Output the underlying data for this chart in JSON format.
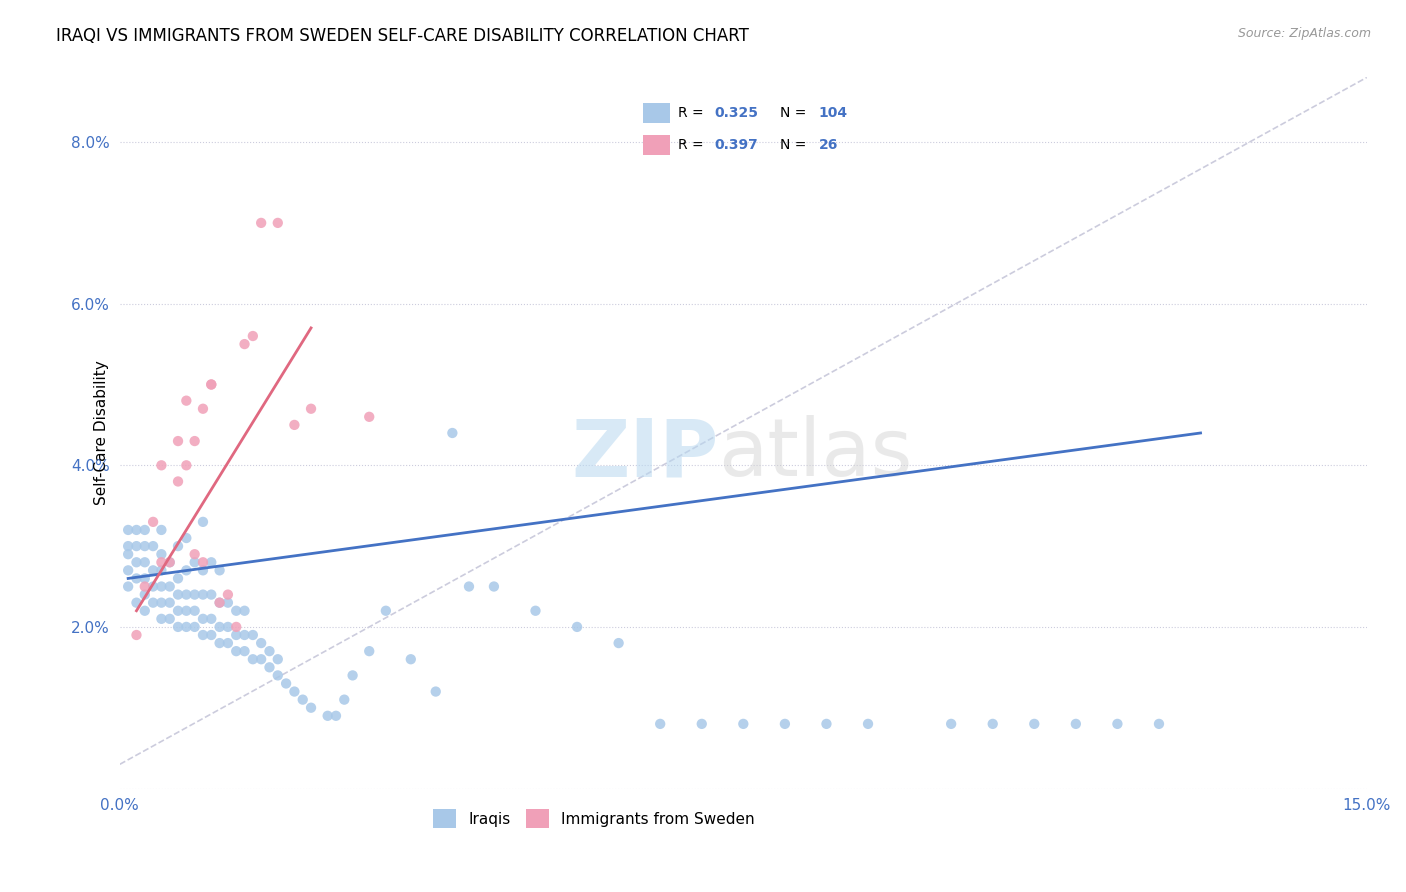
{
  "title": "IRAQI VS IMMIGRANTS FROM SWEDEN SELF-CARE DISABILITY CORRELATION CHART",
  "source": "Source: ZipAtlas.com",
  "ylabel": "Self-Care Disability",
  "xlim": [
    0.0,
    0.15
  ],
  "ylim": [
    0.0,
    0.088
  ],
  "iraqi_color": "#a8c8e8",
  "sweden_color": "#f0a0b8",
  "iraqi_line_color": "#4472c4",
  "sweden_line_color": "#e06880",
  "dashed_line_color": "#ccccdd",
  "R_iraqi": 0.325,
  "N_iraqi": 104,
  "R_sweden": 0.397,
  "N_sweden": 26,
  "legend_color": "#4472c4",
  "iraqi_x": [
    0.001,
    0.001,
    0.001,
    0.001,
    0.001,
    0.002,
    0.002,
    0.002,
    0.002,
    0.002,
    0.003,
    0.003,
    0.003,
    0.003,
    0.003,
    0.003,
    0.004,
    0.004,
    0.004,
    0.004,
    0.005,
    0.005,
    0.005,
    0.005,
    0.005,
    0.005,
    0.006,
    0.006,
    0.006,
    0.006,
    0.007,
    0.007,
    0.007,
    0.007,
    0.007,
    0.008,
    0.008,
    0.008,
    0.008,
    0.008,
    0.009,
    0.009,
    0.009,
    0.009,
    0.01,
    0.01,
    0.01,
    0.01,
    0.01,
    0.011,
    0.011,
    0.011,
    0.011,
    0.012,
    0.012,
    0.012,
    0.012,
    0.013,
    0.013,
    0.013,
    0.014,
    0.014,
    0.014,
    0.015,
    0.015,
    0.015,
    0.016,
    0.016,
    0.017,
    0.017,
    0.018,
    0.018,
    0.019,
    0.019,
    0.02,
    0.021,
    0.022,
    0.023,
    0.025,
    0.026,
    0.027,
    0.028,
    0.03,
    0.032,
    0.035,
    0.038,
    0.04,
    0.042,
    0.045,
    0.05,
    0.055,
    0.06,
    0.065,
    0.07,
    0.075,
    0.08,
    0.085,
    0.09,
    0.1,
    0.105,
    0.11,
    0.115,
    0.12,
    0.125
  ],
  "iraqi_y": [
    0.025,
    0.027,
    0.029,
    0.03,
    0.032,
    0.023,
    0.026,
    0.028,
    0.03,
    0.032,
    0.022,
    0.024,
    0.026,
    0.028,
    0.03,
    0.032,
    0.023,
    0.025,
    0.027,
    0.03,
    0.021,
    0.023,
    0.025,
    0.027,
    0.029,
    0.032,
    0.021,
    0.023,
    0.025,
    0.028,
    0.02,
    0.022,
    0.024,
    0.026,
    0.03,
    0.02,
    0.022,
    0.024,
    0.027,
    0.031,
    0.02,
    0.022,
    0.024,
    0.028,
    0.019,
    0.021,
    0.024,
    0.027,
    0.033,
    0.019,
    0.021,
    0.024,
    0.028,
    0.018,
    0.02,
    0.023,
    0.027,
    0.018,
    0.02,
    0.023,
    0.017,
    0.019,
    0.022,
    0.017,
    0.019,
    0.022,
    0.016,
    0.019,
    0.016,
    0.018,
    0.015,
    0.017,
    0.014,
    0.016,
    0.013,
    0.012,
    0.011,
    0.01,
    0.009,
    0.009,
    0.011,
    0.014,
    0.017,
    0.022,
    0.016,
    0.012,
    0.044,
    0.025,
    0.025,
    0.022,
    0.02,
    0.018,
    0.008,
    0.008,
    0.008,
    0.008,
    0.008,
    0.008,
    0.008,
    0.008,
    0.008,
    0.008,
    0.008,
    0.008
  ],
  "sweden_x": [
    0.002,
    0.003,
    0.004,
    0.005,
    0.005,
    0.006,
    0.007,
    0.007,
    0.008,
    0.008,
    0.009,
    0.009,
    0.01,
    0.01,
    0.011,
    0.011,
    0.012,
    0.013,
    0.014,
    0.015,
    0.016,
    0.017,
    0.019,
    0.021,
    0.023,
    0.03
  ],
  "sweden_y": [
    0.019,
    0.025,
    0.033,
    0.028,
    0.04,
    0.028,
    0.038,
    0.043,
    0.04,
    0.048,
    0.029,
    0.043,
    0.028,
    0.047,
    0.05,
    0.05,
    0.023,
    0.024,
    0.02,
    0.055,
    0.056,
    0.07,
    0.07,
    0.045,
    0.047,
    0.046
  ],
  "iraqi_line_x": [
    0.001,
    0.13
  ],
  "iraqi_line_y": [
    0.026,
    0.044
  ],
  "sweden_line_x": [
    0.002,
    0.023
  ],
  "sweden_line_y": [
    0.022,
    0.057
  ]
}
